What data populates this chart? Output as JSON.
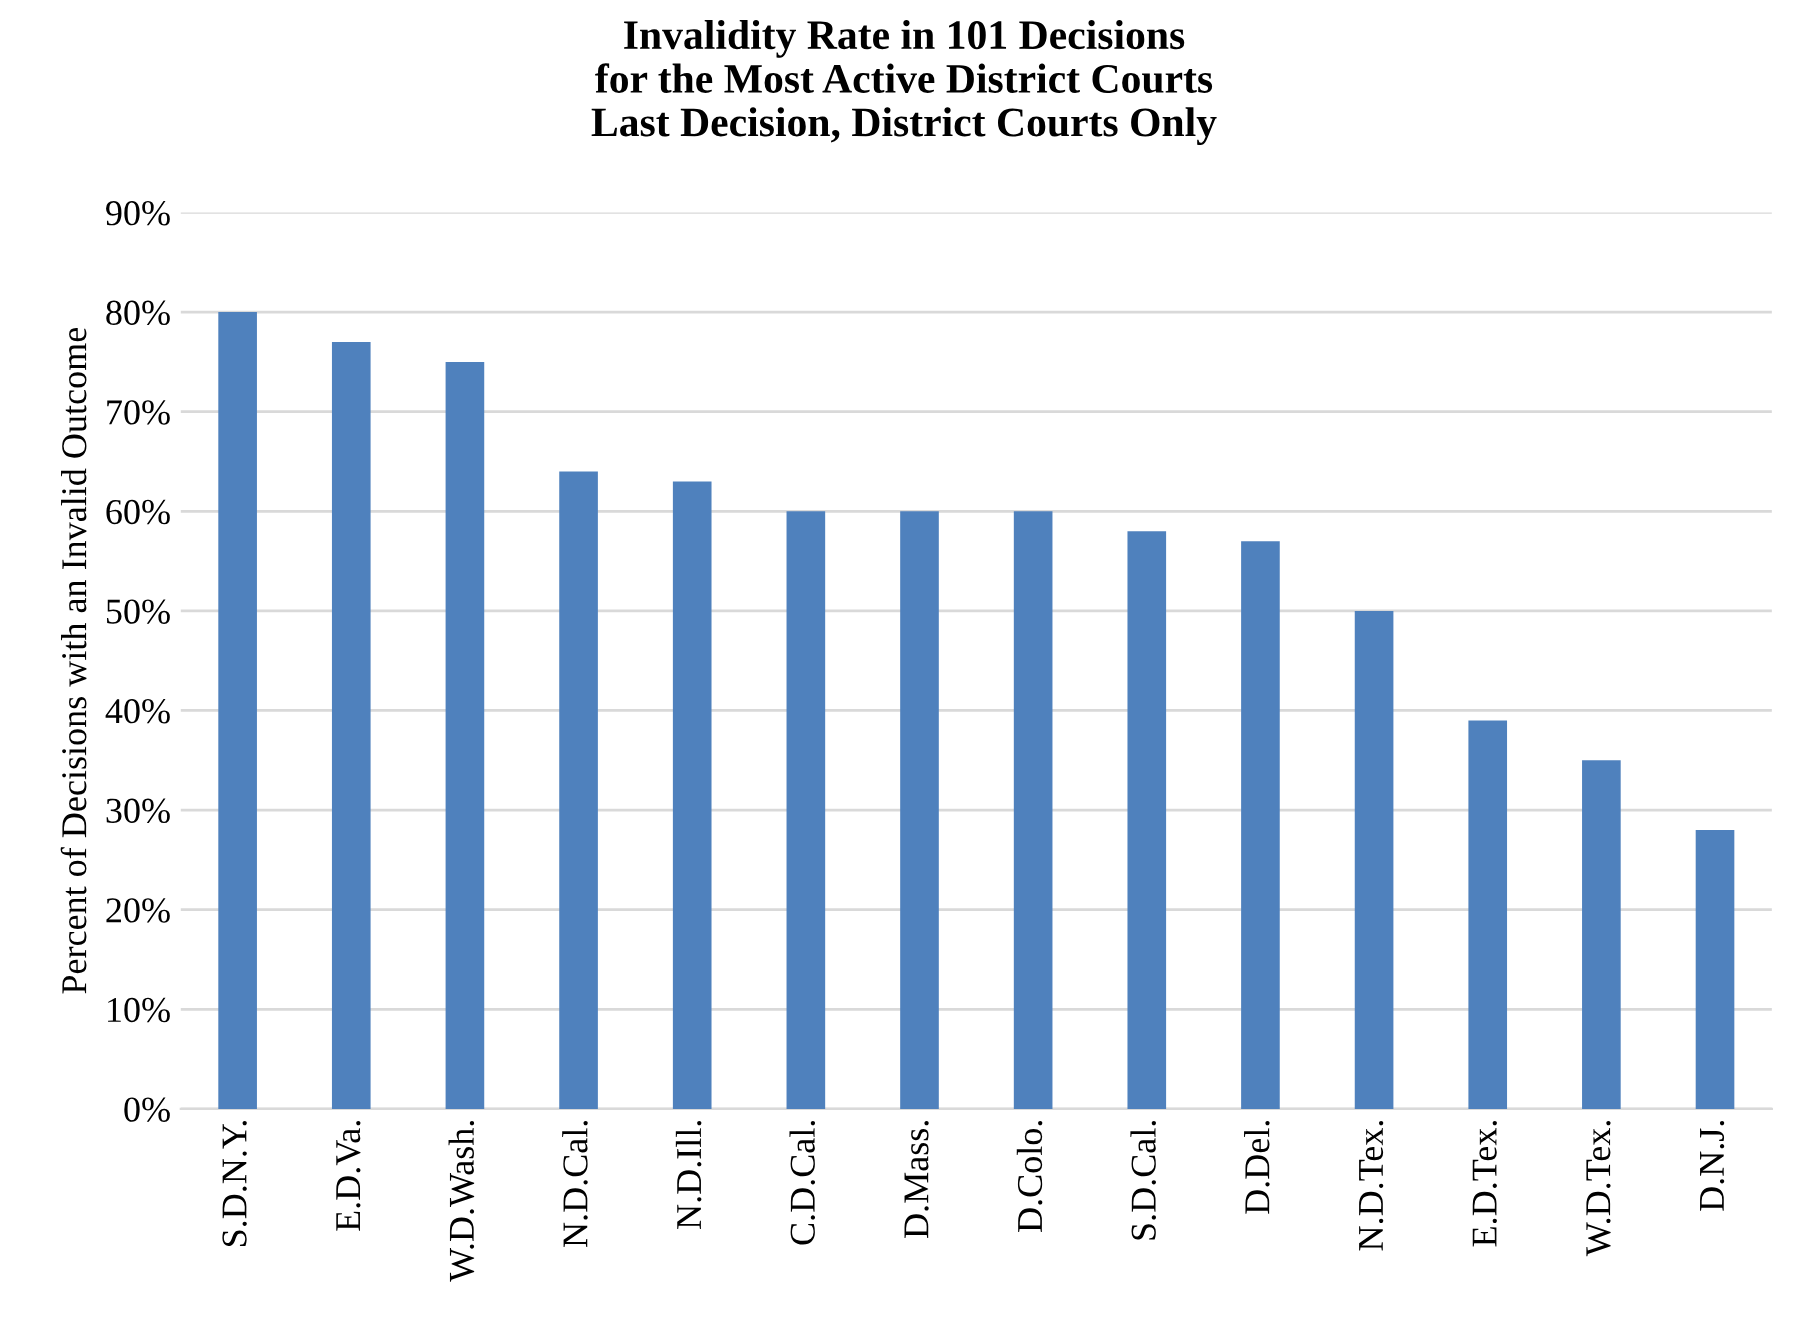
{
  "chart_data": {
    "type": "bar",
    "title": "Invalidity Rate in 101 Decisions\nfor the Most Active District Courts\nLast Decision, District Courts Only",
    "ylabel": "Percent of Decisions with an Invalid Outcome",
    "categories": [
      "S.D.N.Y.",
      "E.D.Va.",
      "W.D.Wash.",
      "N.D.Cal.",
      "N.D.Ill.",
      "C.D.Cal.",
      "D.Mass.",
      "D.Colo.",
      "S.D.Cal.",
      "D.Del.",
      "N.D.Tex.",
      "E.D.Tex.",
      "W.D.Tex.",
      "D.N.J."
    ],
    "values": [
      80,
      77,
      75,
      64,
      63,
      60,
      60,
      60,
      58,
      57,
      50,
      39,
      35,
      28
    ],
    "color": "#4f81bd",
    "ylim": [
      0,
      90
    ],
    "yticks": [
      {
        "value": 0,
        "label": "0%"
      },
      {
        "value": 10,
        "label": "10%"
      },
      {
        "value": 20,
        "label": "20%"
      },
      {
        "value": 30,
        "label": "30%"
      },
      {
        "value": 40,
        "label": "40%"
      },
      {
        "value": 50,
        "label": "50%"
      },
      {
        "value": 60,
        "label": "60%"
      },
      {
        "value": 70,
        "label": "70%"
      },
      {
        "value": 80,
        "label": "80%"
      },
      {
        "value": 90,
        "label": "90%"
      }
    ],
    "grid": "y"
  }
}
